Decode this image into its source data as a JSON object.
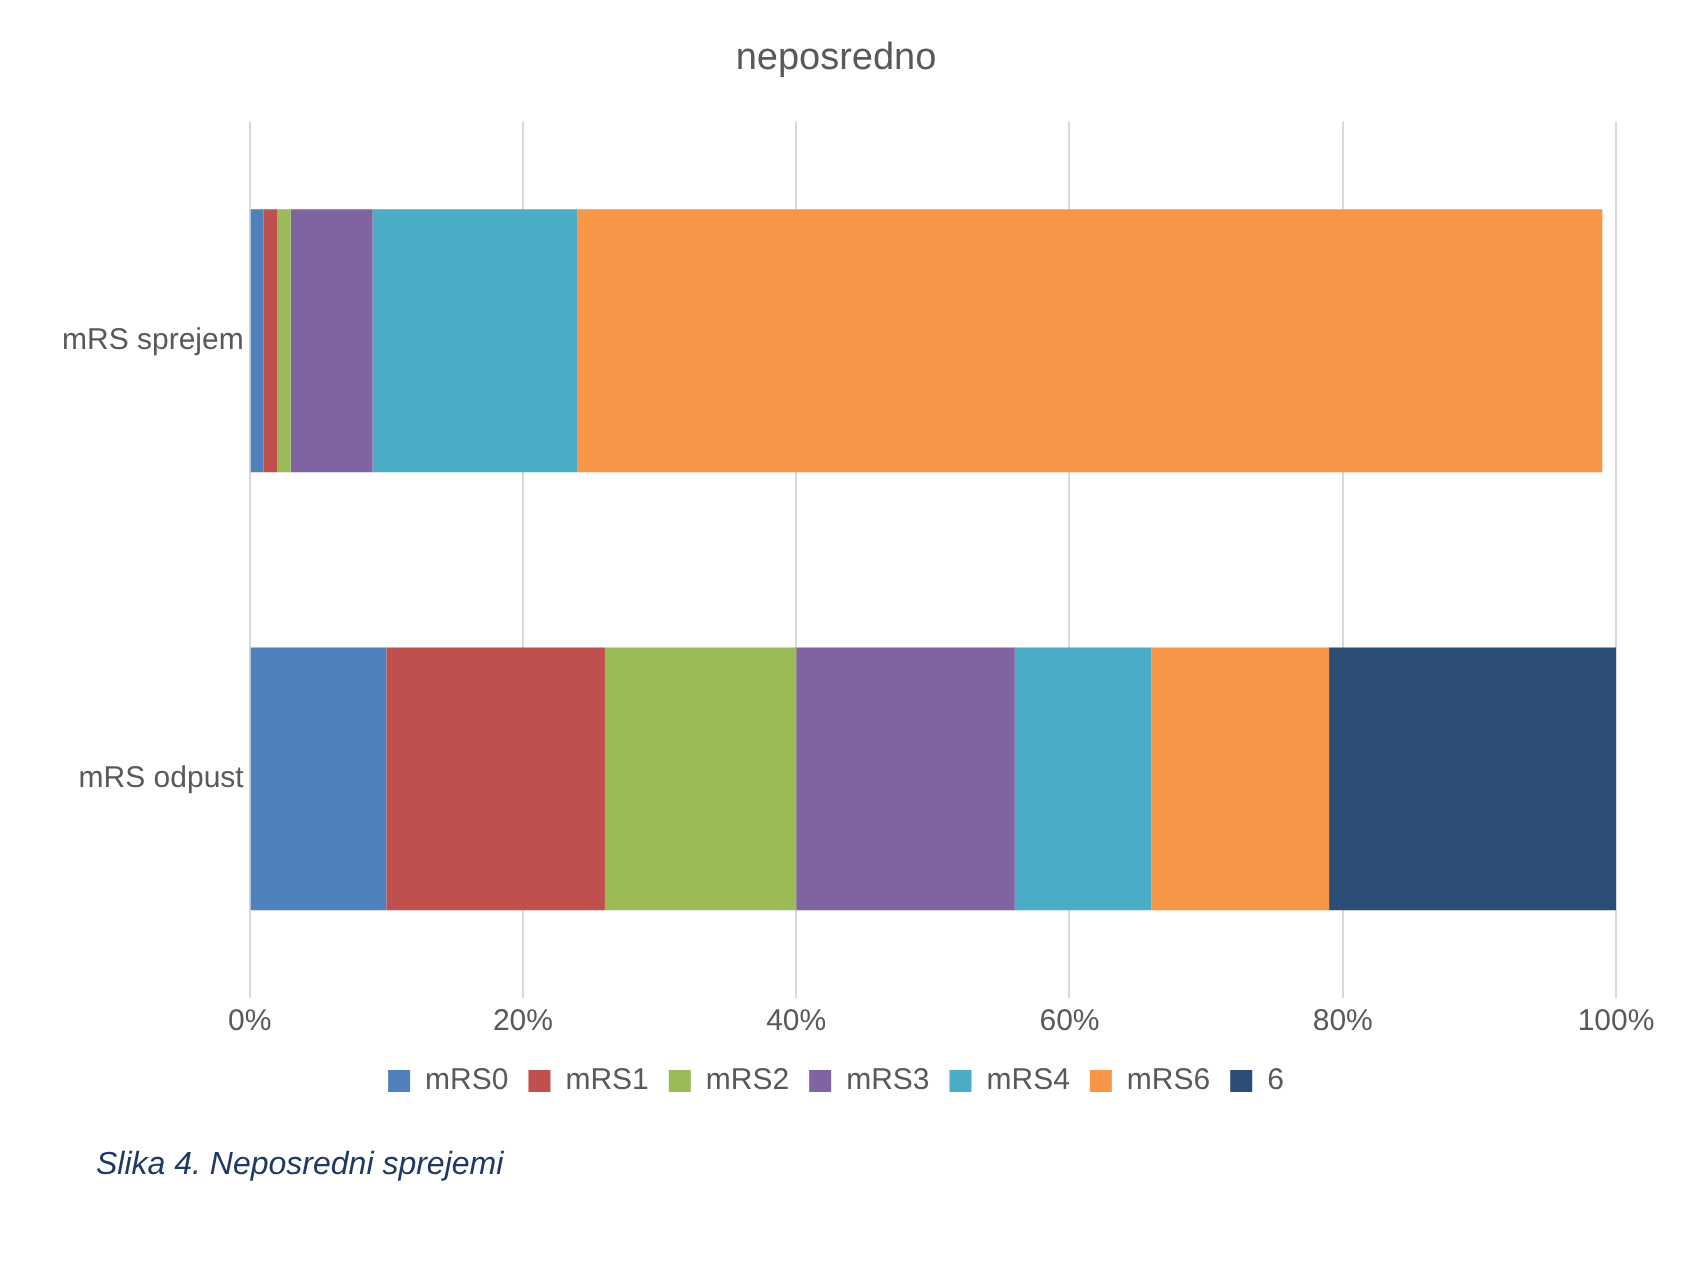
{
  "chart_data": {
    "type": "bar",
    "orientation": "horizontal",
    "stacked": true,
    "title": "neposredno",
    "categories": [
      "mRS sprejem",
      "mRS odpust"
    ],
    "series": [
      {
        "name": "mRS0",
        "color": "#4f81bd",
        "values": [
          1,
          10
        ]
      },
      {
        "name": "mRS1",
        "color": "#c0504d",
        "values": [
          1,
          16
        ]
      },
      {
        "name": "mRS2",
        "color": "#9bbb59",
        "values": [
          1,
          14
        ]
      },
      {
        "name": "mRS3",
        "color": "#8064a2",
        "values": [
          6,
          16
        ]
      },
      {
        "name": "mRS4",
        "color": "#4bacc6",
        "values": [
          15,
          10
        ]
      },
      {
        "name": "mRS6",
        "color": "#f79646",
        "values": [
          75,
          13
        ]
      },
      {
        "name": "6",
        "color": "#2c4d75",
        "values": [
          null,
          21
        ]
      }
    ],
    "xlim": [
      0,
      100
    ],
    "xticks": [
      {
        "value": 0,
        "label": "0%"
      },
      {
        "value": 20,
        "label": "20%"
      },
      {
        "value": 40,
        "label": "40%"
      },
      {
        "value": 60,
        "label": "60%"
      },
      {
        "value": 80,
        "label": "80%"
      },
      {
        "value": 100,
        "label": "100%"
      }
    ],
    "grid": "x",
    "legend": "bottom",
    "annotations": [
      "Slika 4. Neposredni sprejemi"
    ]
  }
}
